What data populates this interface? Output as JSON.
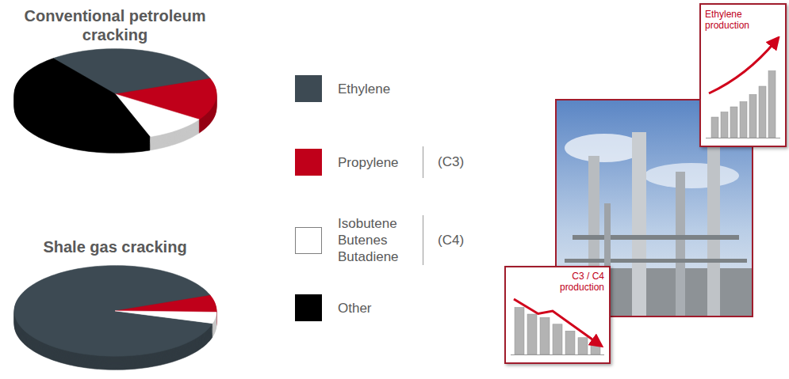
{
  "chart_data": [
    {
      "type": "pie",
      "title": "Conventional petroleum cracking",
      "categories": [
        "Ethylene",
        "Propylene",
        "Isobutene\nButenes\nButadiene",
        "Other"
      ],
      "values": [
        30,
        15,
        10,
        45
      ],
      "colors": [
        "#3d4a53",
        "#c0001a",
        "#ffffff",
        "#000000"
      ],
      "category_groups": [
        null,
        "(C3)",
        "(C4)",
        null
      ],
      "legend": "right"
    },
    {
      "type": "pie",
      "title": "Shale gas cracking",
      "categories": [
        "Ethylene",
        "Propylene",
        "Isobutene\nButenes\nButadiene",
        "Other"
      ],
      "values": [
        90,
        6,
        4,
        0
      ],
      "colors": [
        "#3d4a53",
        "#c0001a",
        "#ffffff",
        "#000000"
      ]
    },
    {
      "type": "bar",
      "title": "Ethylene production",
      "categories": [
        null,
        null,
        null,
        null,
        null,
        null,
        null
      ],
      "values": [
        2,
        2.5,
        3,
        3.5,
        4.2,
        5,
        6.5
      ],
      "color": "#b3b3b3",
      "ylim": [
        0,
        8
      ],
      "tick_labels": false
    },
    {
      "type": "bar",
      "title": "C3 / C4 production",
      "categories": [
        null,
        null,
        null,
        null,
        null,
        null,
        null
      ],
      "values": [
        7,
        6,
        5.5,
        4.5,
        3.5,
        2.5,
        1.5
      ],
      "color": "#b3b3b3",
      "ylim": [
        0,
        8
      ],
      "tick_labels": false
    }
  ]
}
